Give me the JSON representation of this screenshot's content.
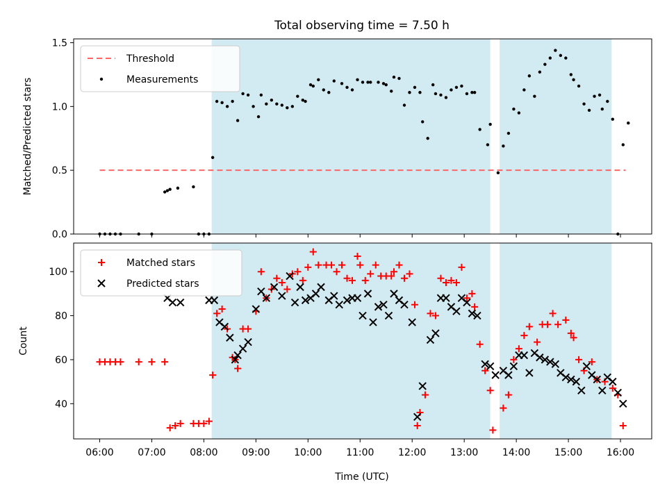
{
  "chart_data": {
    "title": "Total observing time = 7.50 h",
    "xlabel": "Time (UTC)",
    "x_ticks": [
      "06:00",
      "07:00",
      "08:00",
      "09:00",
      "10:00",
      "11:00",
      "12:00",
      "13:00",
      "14:00",
      "15:00",
      "16:00"
    ],
    "x_tick_hours": [
      6,
      7,
      8,
      9,
      10,
      11,
      12,
      13,
      14,
      15,
      16
    ],
    "xlim": [
      5.5,
      16.6
    ],
    "shaded_intervals": [
      [
        8.15,
        13.5
      ],
      [
        13.68,
        15.83
      ]
    ],
    "colors": {
      "shade": "#add8e6",
      "threshold": "#ff6666",
      "measurements": "#000000",
      "matched": "#ff0000",
      "predicted": "#000000"
    },
    "panels": [
      {
        "type": "scatter",
        "ylabel": "Matched/Predicted stars",
        "ylim": [
          0,
          1.53
        ],
        "y_ticks": [
          "0.0",
          "0.5",
          "1.0",
          "1.5"
        ],
        "y_tick_values": [
          0,
          0.5,
          1.0,
          1.5
        ],
        "legend": {
          "position": "upper-left",
          "entries": [
            "Threshold",
            "Measurements"
          ]
        },
        "threshold": {
          "name": "Threshold",
          "value": 0.5,
          "x_range": [
            6.0,
            16.1
          ]
        },
        "series": [
          {
            "name": "Measurements",
            "marker": "dot",
            "x": [
              6.0,
              6.1,
              6.2,
              6.3,
              6.4,
              6.75,
              7.0,
              7.25,
              7.3,
              7.35,
              7.5,
              7.8,
              7.9,
              8.0,
              8.1,
              8.17,
              8.25,
              8.35,
              8.45,
              8.55,
              8.65,
              8.75,
              8.85,
              8.95,
              9.05,
              9.1,
              9.2,
              9.3,
              9.4,
              9.5,
              9.6,
              9.7,
              9.8,
              9.9,
              9.95,
              10.05,
              10.1,
              10.2,
              10.3,
              10.4,
              10.5,
              10.65,
              10.75,
              10.85,
              10.95,
              11.05,
              11.15,
              11.2,
              11.35,
              11.45,
              11.5,
              11.6,
              11.65,
              11.75,
              11.85,
              11.95,
              12.05,
              12.15,
              12.2,
              12.3,
              12.4,
              12.45,
              12.55,
              12.65,
              12.75,
              12.85,
              12.95,
              13.05,
              13.15,
              13.2,
              13.3,
              13.45,
              13.5,
              13.65,
              13.75,
              13.85,
              13.95,
              14.05,
              14.15,
              14.25,
              14.35,
              14.45,
              14.55,
              14.65,
              14.75,
              14.85,
              14.95,
              15.05,
              15.1,
              15.2,
              15.3,
              15.4,
              15.5,
              15.6,
              15.65,
              15.75,
              15.85,
              15.95,
              16.05,
              16.15
            ],
            "y": [
              0,
              0,
              0,
              0,
              0,
              0,
              0,
              0.33,
              0.34,
              0.35,
              0.36,
              0.37,
              0,
              0,
              0,
              0.6,
              1.04,
              1.03,
              1.0,
              1.04,
              0.89,
              1.1,
              1.09,
              1.0,
              0.92,
              1.09,
              1.02,
              1.05,
              1.02,
              1.01,
              0.99,
              1.0,
              1.08,
              1.05,
              1.04,
              1.17,
              1.16,
              1.21,
              1.13,
              1.11,
              1.2,
              1.18,
              1.15,
              1.13,
              1.21,
              1.19,
              1.19,
              1.19,
              1.19,
              1.18,
              1.17,
              1.12,
              1.23,
              1.22,
              1.01,
              1.11,
              1.15,
              1.11,
              0.88,
              0.75,
              1.17,
              1.1,
              1.09,
              1.07,
              1.13,
              1.15,
              1.16,
              1.1,
              1.11,
              1.11,
              0.82,
              0.7,
              0.86,
              0.48,
              0.69,
              0.79,
              0.98,
              0.95,
              1.13,
              1.24,
              1.08,
              1.27,
              1.33,
              1.38,
              1.44,
              1.4,
              1.38,
              1.25,
              1.21,
              1.16,
              1.02,
              0.97,
              1.08,
              1.09,
              0.98,
              1.04,
              0.9,
              0,
              0.7,
              0.87
            ]
          }
        ]
      },
      {
        "type": "scatter",
        "ylabel": "Count",
        "ylim": [
          24,
          113
        ],
        "y_ticks": [
          "40",
          "60",
          "80",
          "100"
        ],
        "y_tick_values": [
          40,
          60,
          80,
          100
        ],
        "legend": {
          "position": "upper-left",
          "entries": [
            "Matched stars",
            "Predicted stars"
          ]
        },
        "series": [
          {
            "name": "Matched stars",
            "marker": "plus",
            "x": [
              6.0,
              6.1,
              6.2,
              6.3,
              6.4,
              6.75,
              7.0,
              7.25,
              7.35,
              7.45,
              7.55,
              7.8,
              7.9,
              8.0,
              8.1,
              8.17,
              8.25,
              8.35,
              8.45,
              8.55,
              8.6,
              8.65,
              8.75,
              8.85,
              9.0,
              9.1,
              9.2,
              9.3,
              9.4,
              9.5,
              9.6,
              9.7,
              9.8,
              9.9,
              10.0,
              10.1,
              10.2,
              10.35,
              10.45,
              10.55,
              10.65,
              10.75,
              10.85,
              10.95,
              11.0,
              11.1,
              11.2,
              11.3,
              11.4,
              11.5,
              11.6,
              11.65,
              11.75,
              11.85,
              11.95,
              12.05,
              12.1,
              12.15,
              12.25,
              12.35,
              12.45,
              12.55,
              12.65,
              12.75,
              12.85,
              12.95,
              13.05,
              13.15,
              13.2,
              13.3,
              13.4,
              13.5,
              13.55,
              13.75,
              13.85,
              13.95,
              14.05,
              14.15,
              14.25,
              14.4,
              14.5,
              14.6,
              14.7,
              14.8,
              14.95,
              15.05,
              15.1,
              15.2,
              15.3,
              15.45,
              15.55,
              15.7,
              15.85,
              15.95,
              16.05
            ],
            "y": [
              59,
              59,
              59,
              59,
              59,
              59,
              59,
              59,
              29,
              30,
              31,
              31,
              31,
              31,
              32,
              53,
              81,
              83,
              74,
              61,
              60,
              56,
              74,
              74,
              82,
              100,
              88,
              92,
              97,
              95,
              92,
              99,
              100,
              96,
              102,
              109,
              103,
              103,
              103,
              100,
              103,
              97,
              96,
              107,
              103,
              96,
              99,
              103,
              98,
              98,
              98,
              100,
              103,
              97,
              99,
              85,
              30,
              36,
              44,
              81,
              80,
              97,
              95,
              96,
              95,
              102,
              88,
              90,
              84,
              67,
              55,
              46,
              28,
              38,
              44,
              60,
              65,
              71,
              75,
              68,
              76,
              76,
              81,
              76,
              78,
              72,
              70,
              60,
              55,
              59,
              51,
              50,
              47,
              44,
              30
            ]
          },
          {
            "name": "Predicted stars",
            "marker": "x",
            "x": [
              7.3,
              7.4,
              7.55,
              8.1,
              8.2,
              8.3,
              8.4,
              8.5,
              8.6,
              8.65,
              8.75,
              8.85,
              9.0,
              9.1,
              9.2,
              9.35,
              9.5,
              9.65,
              9.75,
              9.85,
              9.95,
              10.05,
              10.15,
              10.25,
              10.4,
              10.5,
              10.6,
              10.75,
              10.85,
              10.95,
              11.05,
              11.15,
              11.25,
              11.35,
              11.45,
              11.55,
              11.65,
              11.75,
              11.85,
              12.0,
              12.1,
              12.2,
              12.35,
              12.45,
              12.55,
              12.65,
              12.75,
              12.85,
              12.95,
              13.05,
              13.15,
              13.25,
              13.4,
              13.5,
              13.6,
              13.75,
              13.85,
              13.95,
              14.05,
              14.15,
              14.25,
              14.35,
              14.45,
              14.55,
              14.65,
              14.75,
              14.85,
              14.95,
              15.05,
              15.15,
              15.25,
              15.35,
              15.45,
              15.55,
              15.65,
              15.75,
              15.85,
              15.95,
              16.05
            ],
            "y": [
              88,
              86,
              86,
              87,
              87,
              77,
              75,
              70,
              60,
              62,
              65,
              68,
              83,
              91,
              88,
              93,
              89,
              98,
              86,
              93,
              87,
              88,
              90,
              93,
              87,
              89,
              85,
              87,
              88,
              88,
              80,
              90,
              77,
              84,
              85,
              80,
              90,
              87,
              85,
              77,
              34,
              48,
              69,
              72,
              88,
              88,
              84,
              82,
              88,
              86,
              81,
              80,
              58,
              57,
              53,
              55,
              53,
              57,
              62,
              62,
              54,
              63,
              61,
              60,
              59,
              58,
              54,
              52,
              51,
              50,
              46,
              57,
              53,
              51,
              46,
              52,
              50,
              45,
              40
            ]
          }
        ]
      }
    ]
  }
}
